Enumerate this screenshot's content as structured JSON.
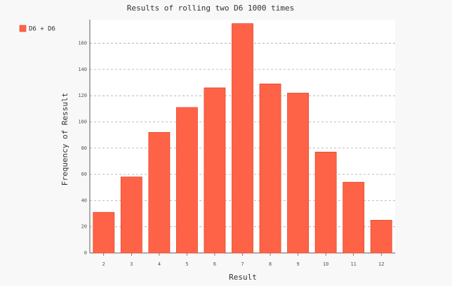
{
  "chart_data": {
    "type": "bar",
    "title": "Results of rolling two D6 1000 times",
    "x_label": "Result",
    "y_label": "Frequency of Ressult",
    "categories": [
      "2",
      "3",
      "4",
      "5",
      "6",
      "7",
      "8",
      "9",
      "10",
      "11",
      "12"
    ],
    "series": [
      {
        "name": "D6 + D6",
        "color": "#ff6347",
        "values": [
          31,
          58,
          92,
          111,
          126,
          175,
          129,
          122,
          77,
          54,
          25
        ]
      }
    ],
    "ylim": [
      0,
      178
    ],
    "yticks": [
      0,
      20,
      40,
      60,
      80,
      100,
      120,
      140,
      160
    ],
    "grid": true,
    "legend": "top-left"
  }
}
